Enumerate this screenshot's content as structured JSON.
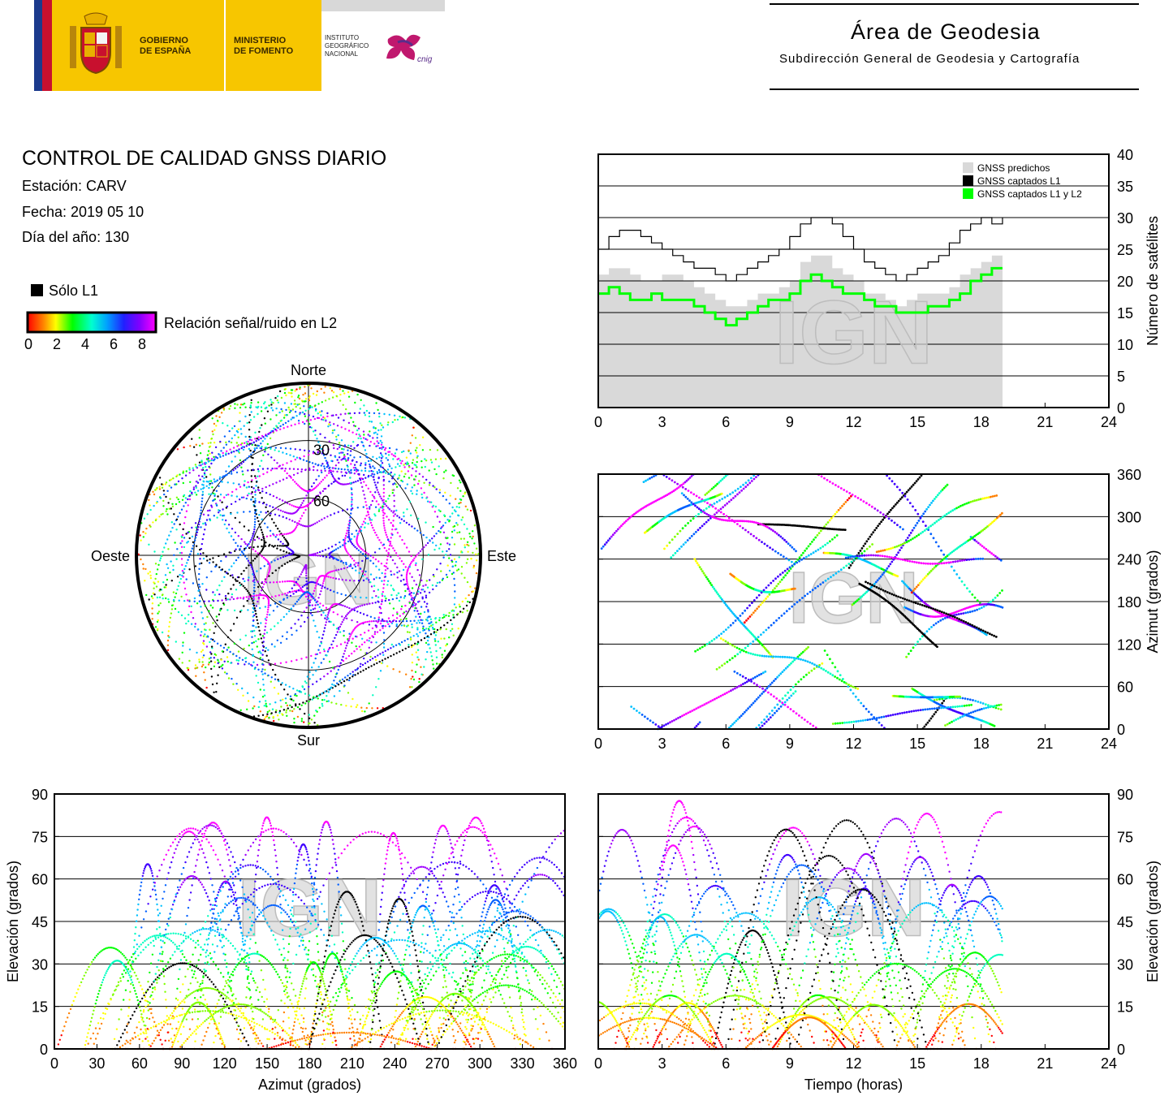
{
  "header": {
    "gov_line1": "GOBIERNO",
    "gov_line2": "DE ESPAÑA",
    "min_line1": "MINISTERIO",
    "min_line2": "DE FOMENTO",
    "ign_line1": "INSTITUTO",
    "ign_line2": "GEOGRÁFICO",
    "ign_line3": "NACIONAL",
    "cnig": "cnig",
    "area_title": "Área de Geodesia",
    "area_subtitle": "Subdirección General de Geodesia y Cartografía"
  },
  "report": {
    "title": "CONTROL DE CALIDAD GNSS DIARIO",
    "station": "Estación: CARV",
    "date": "Fecha: 2019 05 10",
    "doy": "Día del año: 130"
  },
  "legend": {
    "l1_only": "Sólo L1",
    "snr_label": "Relación señal/ruido en L2",
    "snr_ticks": [
      "0",
      "2",
      "4",
      "6",
      "8"
    ],
    "snr_colors": [
      "#ff0000",
      "#ff8000",
      "#ffff00",
      "#80ff00",
      "#00ff00",
      "#00ffc0",
      "#00c0ff",
      "#0060ff",
      "#4000ff",
      "#a000ff",
      "#ff00ff"
    ]
  },
  "watermark": "IGN",
  "colors": {
    "predicted": "#d9d9d9",
    "l1": "#000000",
    "l1l2": "#00ff00",
    "magenta": "#ff00ff"
  },
  "chart_data": [
    {
      "id": "satellites",
      "type": "area",
      "ylabel": "Número de satélites",
      "xlim": [
        0,
        24
      ],
      "ylim": [
        0,
        40
      ],
      "xticks": [
        "0",
        "3",
        "6",
        "9",
        "12",
        "15",
        "18",
        "21",
        "24"
      ],
      "yticks": [
        "0",
        "5",
        "10",
        "15",
        "20",
        "25",
        "30",
        "35",
        "40"
      ],
      "grid": true,
      "legend_position": "top-right",
      "legend": [
        "GNSS predichos",
        "GNSS captados L1",
        "GNSS captados L1 y L2"
      ],
      "x": [
        0,
        0.5,
        1,
        1.5,
        2,
        2.5,
        3,
        3.5,
        4,
        4.5,
        5,
        5.5,
        6,
        6.5,
        7,
        7.5,
        8,
        8.5,
        9,
        9.5,
        10,
        10.5,
        11,
        11.5,
        12,
        12.5,
        13,
        13.5,
        14,
        14.5,
        15,
        15.5,
        16,
        16.5,
        17,
        17.5,
        18,
        18.5,
        19
      ],
      "series": [
        {
          "name": "GNSS predichos",
          "values": [
            21,
            22,
            22,
            21,
            20,
            20,
            21,
            21,
            20,
            19,
            18,
            17,
            16,
            16,
            17,
            18,
            18,
            19,
            20,
            23,
            24,
            24,
            22,
            21,
            20,
            18,
            18,
            17,
            16,
            17,
            18,
            18,
            18,
            19,
            21,
            22,
            23,
            24,
            22
          ]
        },
        {
          "name": "GNSS captados L1",
          "values": [
            25,
            27,
            28,
            28,
            27,
            26,
            25,
            24,
            23,
            22,
            22,
            21,
            20,
            21,
            22,
            23,
            24,
            25,
            27,
            29,
            30,
            30,
            29,
            27,
            25,
            23,
            22,
            21,
            20,
            21,
            22,
            23,
            24,
            26,
            28,
            29,
            30,
            29,
            30
          ]
        },
        {
          "name": "GNSS captados L1 y L2",
          "values": [
            18,
            19,
            18,
            17,
            17,
            18,
            17,
            17,
            17,
            16,
            15,
            14,
            13,
            14,
            15,
            16,
            17,
            17,
            18,
            20,
            21,
            20,
            19,
            18,
            18,
            17,
            16,
            16,
            15,
            15,
            15,
            16,
            16,
            17,
            18,
            20,
            21,
            22,
            22
          ]
        }
      ]
    },
    {
      "id": "azimuth-time",
      "type": "scatter",
      "ylabel": "Azimut (grados)",
      "xlim": [
        0,
        24
      ],
      "ylim": [
        0,
        360
      ],
      "xticks": [
        "0",
        "3",
        "6",
        "9",
        "12",
        "15",
        "18",
        "21",
        "24"
      ],
      "yticks": [
        "0",
        "60",
        "120",
        "180",
        "240",
        "300",
        "360"
      ],
      "grid": true
    },
    {
      "id": "skyplot",
      "type": "scatter",
      "labels": {
        "north": "Norte",
        "south": "Sur",
        "east": "Este",
        "west": "Oeste"
      },
      "rings": [
        "30",
        "60"
      ]
    },
    {
      "id": "elev-azimuth",
      "type": "scatter",
      "xlabel": "Azimut (grados)",
      "ylabel": "Elevación (grados)",
      "xlim": [
        0,
        360
      ],
      "ylim": [
        0,
        90
      ],
      "xticks": [
        "0",
        "30",
        "60",
        "90",
        "120",
        "150",
        "180",
        "210",
        "240",
        "270",
        "300",
        "330",
        "360"
      ],
      "yticks": [
        "0",
        "15",
        "30",
        "45",
        "60",
        "75",
        "90"
      ],
      "grid": true
    },
    {
      "id": "elev-time",
      "type": "scatter",
      "xlabel": "Tiempo (horas)",
      "ylabel": "Elevación (grados)",
      "xlim": [
        0,
        24
      ],
      "ylim": [
        0,
        90
      ],
      "xticks": [
        "0",
        "3",
        "6",
        "9",
        "12",
        "15",
        "18",
        "21",
        "24"
      ],
      "yticks": [
        "0",
        "15",
        "30",
        "45",
        "60",
        "75",
        "90"
      ],
      "grid": true
    }
  ]
}
